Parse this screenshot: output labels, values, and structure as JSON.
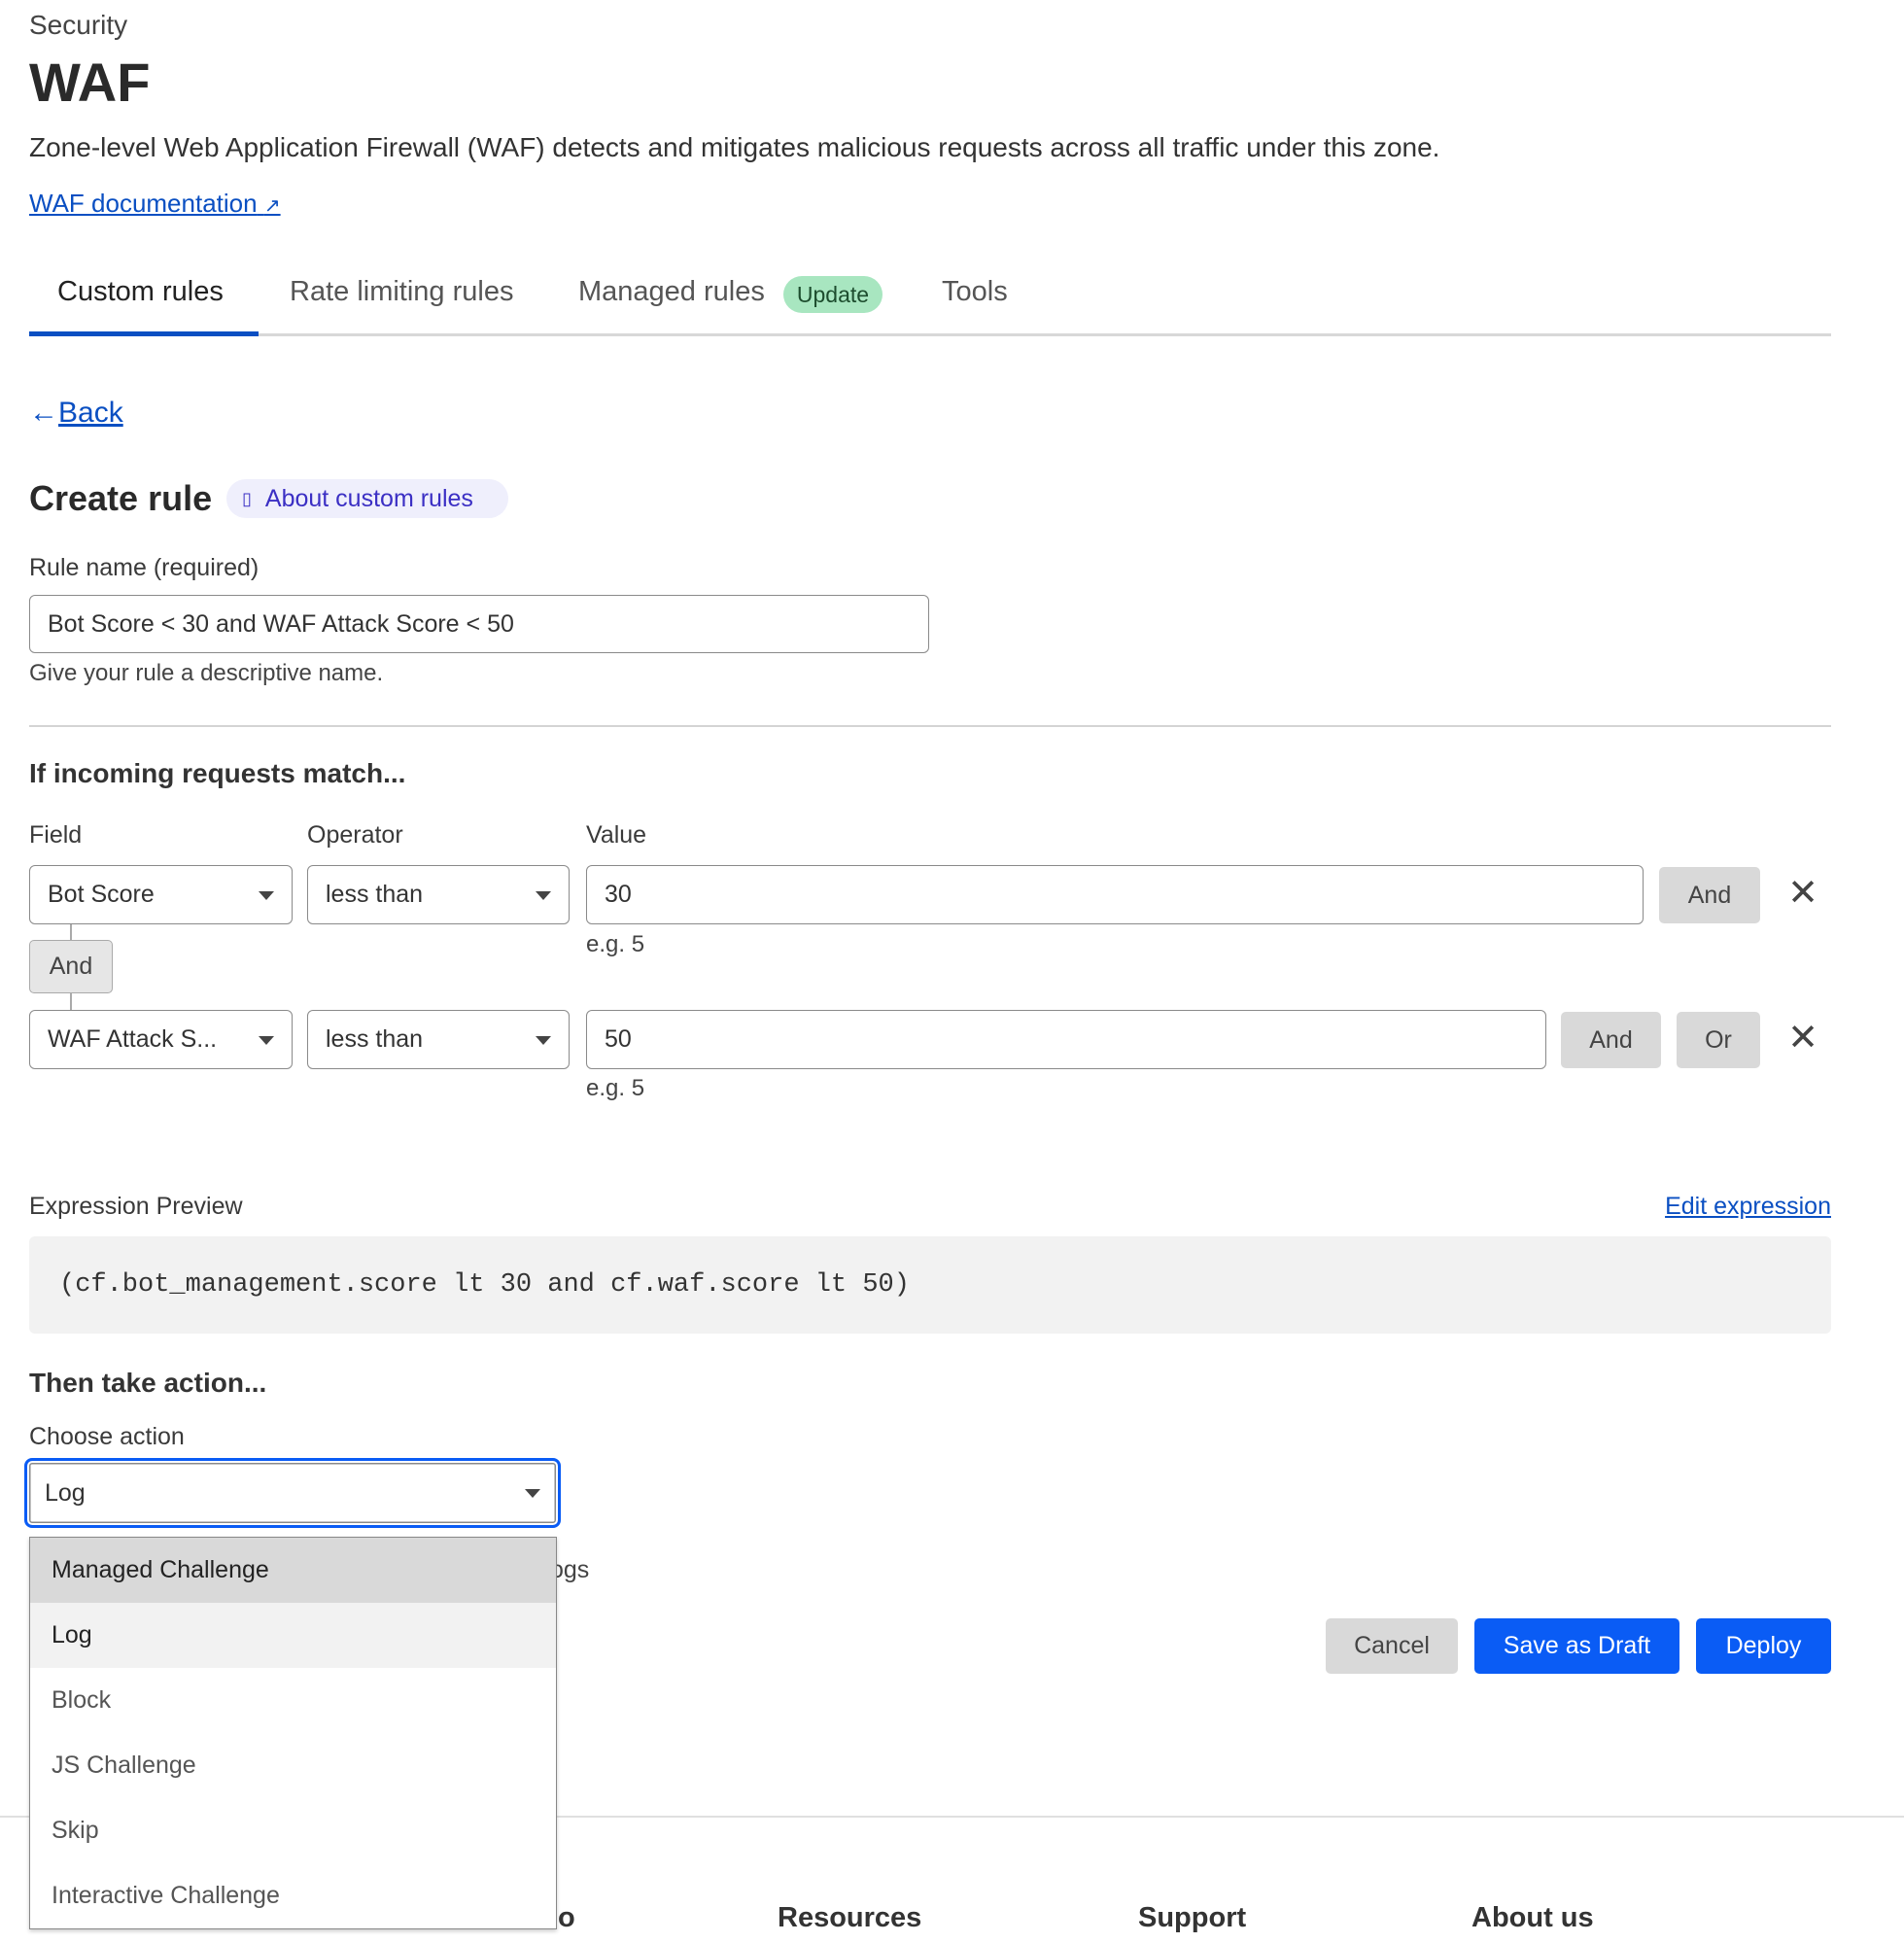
{
  "header": {
    "section": "Security",
    "title": "WAF",
    "description": "Zone-level Web Application Firewall (WAF) detects and mitigates malicious requests across all traffic under this zone.",
    "doc_link": "WAF documentation"
  },
  "tabs": [
    {
      "label": "Custom rules",
      "active": true
    },
    {
      "label": "Rate limiting rules"
    },
    {
      "label": "Managed rules",
      "badge": "Update"
    },
    {
      "label": "Tools"
    }
  ],
  "back": "Back",
  "form": {
    "title": "Create rule",
    "about_link": "About custom rules",
    "rule_name_label": "Rule name (required)",
    "rule_name_value": "Bot Score < 30 and WAF Attack Score < 50",
    "rule_name_help": "Give your rule a descriptive name.",
    "match_heading": "If incoming requests match...",
    "field_label": "Field",
    "operator_label": "Operator",
    "value_label": "Value",
    "conditions": [
      {
        "field": "Bot Score",
        "operator": "less than",
        "value": "30",
        "hint": "e.g. 5",
        "and": "And"
      },
      {
        "field": "WAF Attack S...",
        "operator": "less than",
        "value": "50",
        "hint": "e.g. 5",
        "and": "And",
        "or": "Or"
      }
    ],
    "connector": "And",
    "expression_label": "Expression Preview",
    "edit_expression": "Edit expression",
    "expression": "(cf.bot_management.score lt 30 and cf.waf.score lt 50)",
    "action_heading": "Then take action...",
    "action_label": "Choose action",
    "action_value": "Log",
    "partial_text": "ogs",
    "action_options": [
      "Managed Challenge",
      "Log",
      "Block",
      "JS Challenge",
      "Skip",
      "Interactive Challenge"
    ],
    "cancel": "Cancel",
    "save_draft": "Save as Draft",
    "deploy": "Deploy"
  },
  "footer": {
    "partial": "o",
    "headings": [
      "Resources",
      "Support",
      "About us"
    ]
  },
  "colors": {
    "primary": "#0a5cf5",
    "link": "#0a4fc2",
    "badge_bg": "#a8e6c0"
  }
}
